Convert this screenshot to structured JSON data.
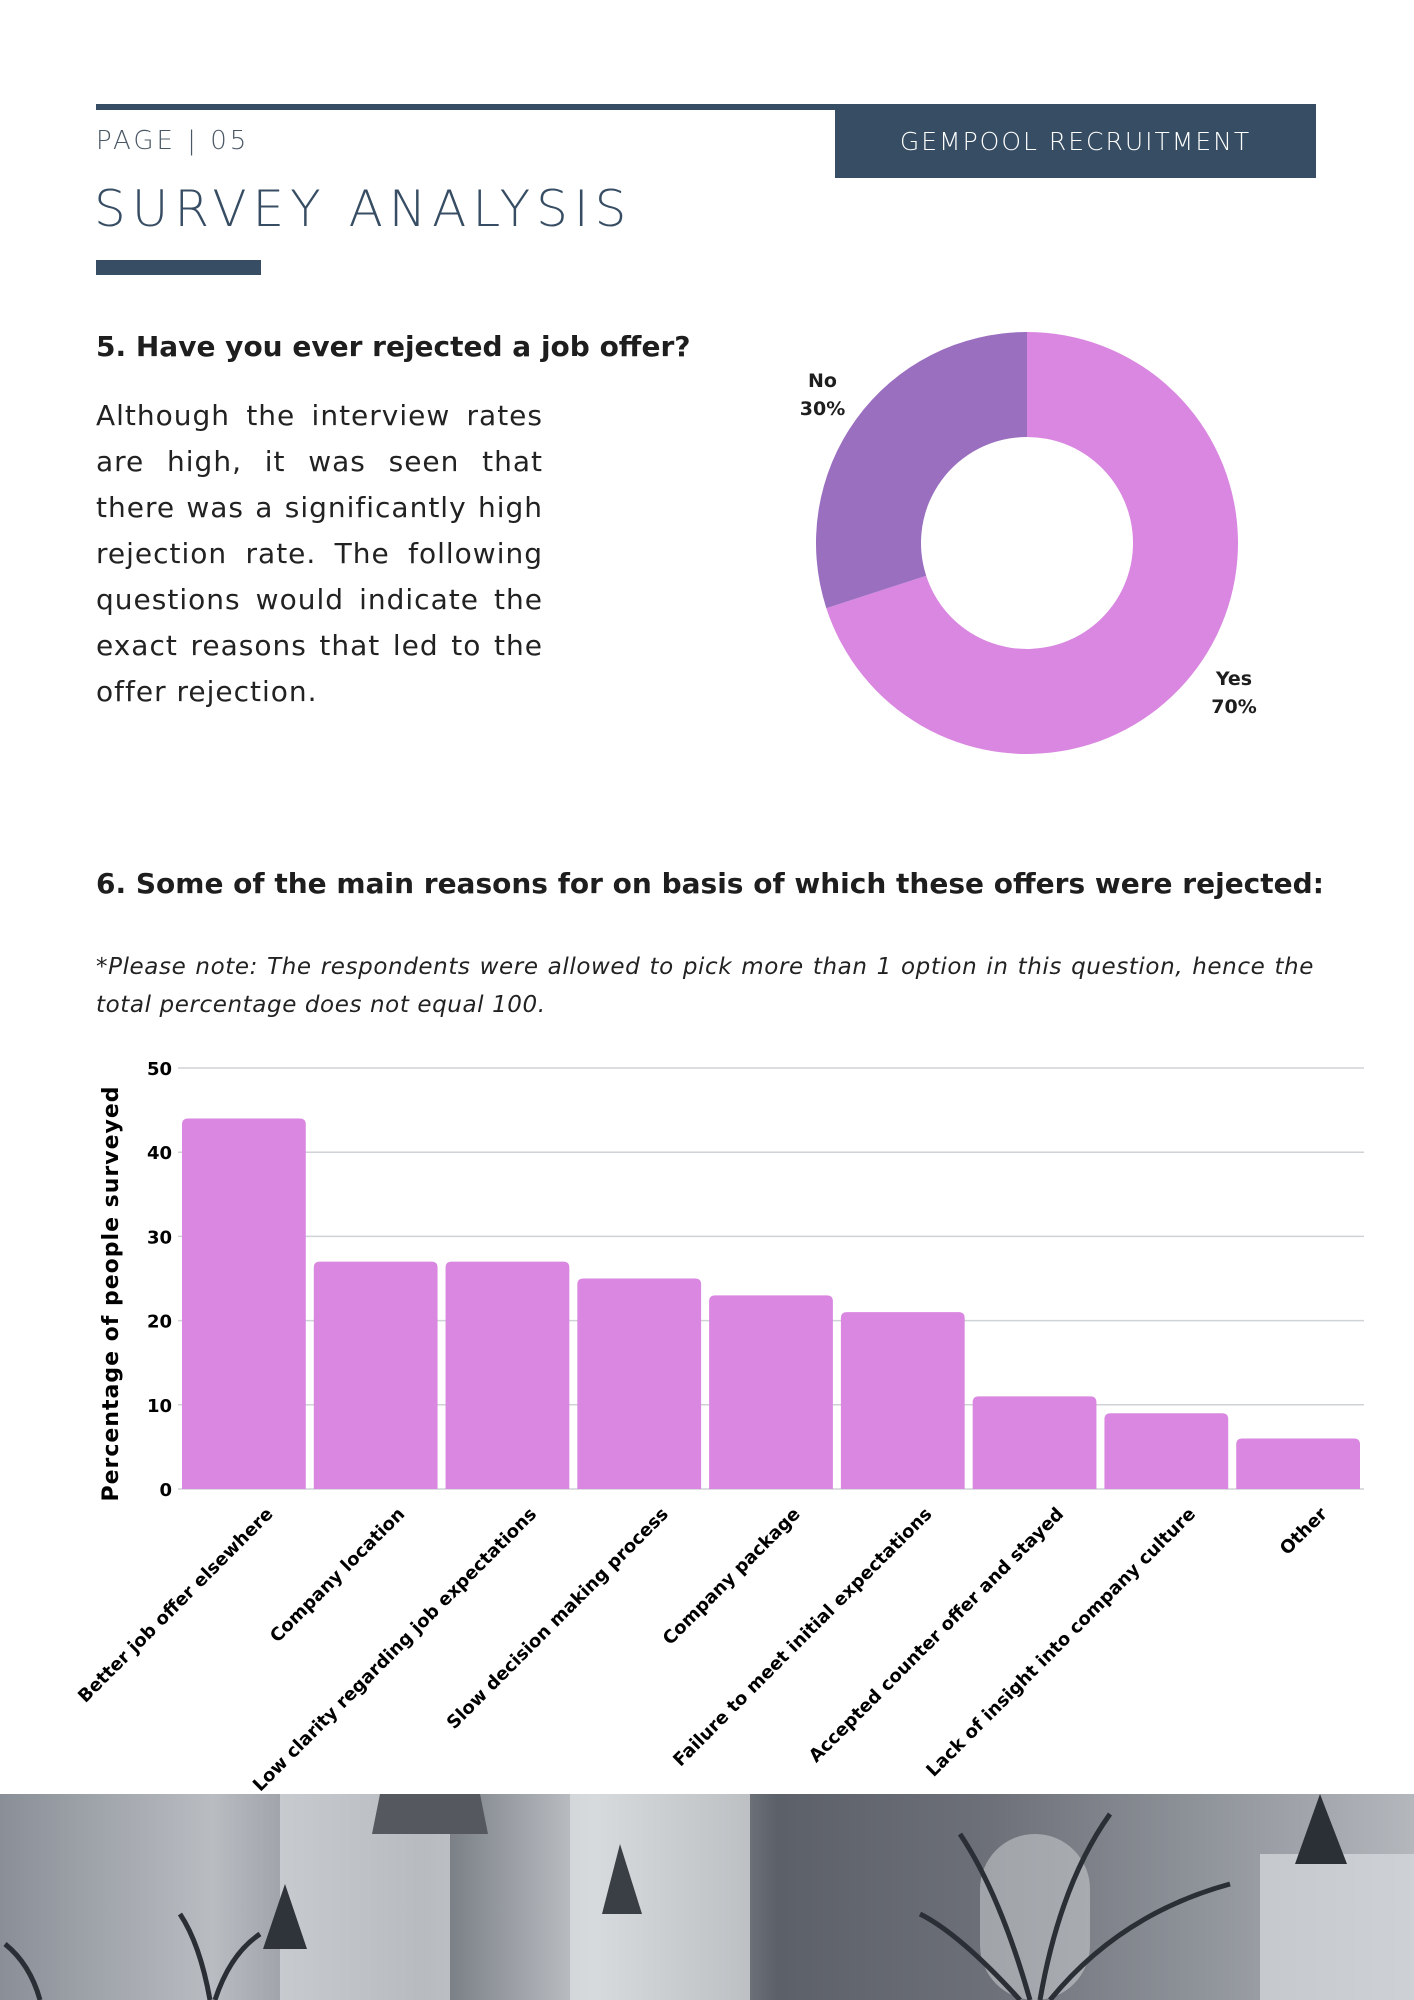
{
  "header": {
    "page_label": "PAGE | 05",
    "brand": "GEMPOOL RECRUITMENT",
    "title": "SURVEY ANALYSIS"
  },
  "section5": {
    "question": "5. Have you ever rejected a job offer?",
    "paragraph": "Although the interview rates are high, it was seen that there was a significantly high rejection rate. The following questions would indicate the exact reasons that led to the offer rejection."
  },
  "section6": {
    "question": "6. Some of the main reasons for on basis of which these offers were rejected:",
    "note": "*Please note: The respondents were allowed to pick more than 1 option in this question, hence the total percentage does not equal 100."
  },
  "chart_data": [
    {
      "type": "pie",
      "donut": true,
      "slices": [
        {
          "label": "Yes",
          "value": 70,
          "display": "70%",
          "color": "#d987e0"
        },
        {
          "label": "No",
          "value": 30,
          "display": "30%",
          "color": "#9b6fc0"
        }
      ]
    },
    {
      "type": "bar",
      "ylabel": "Percentage of people surveyed",
      "ylim": [
        0,
        50
      ],
      "yticks": [
        0,
        10,
        20,
        30,
        40,
        50
      ],
      "grid": true,
      "color": "#d987e0",
      "categories": [
        "Better job offer elsewhere",
        "Company location",
        "Low clarity regarding job expectations",
        "Slow decision making process",
        "Company package",
        "Failure to meet initial expectations",
        "Accepted counter offer and stayed",
        "Lack of insight into company culture",
        "Other"
      ],
      "values": [
        44,
        27,
        27,
        25,
        23,
        21,
        11,
        9,
        6
      ]
    }
  ],
  "colors": {
    "navy": "#374d63",
    "bar": "#d987e0",
    "no_slice": "#9b6fc0"
  }
}
